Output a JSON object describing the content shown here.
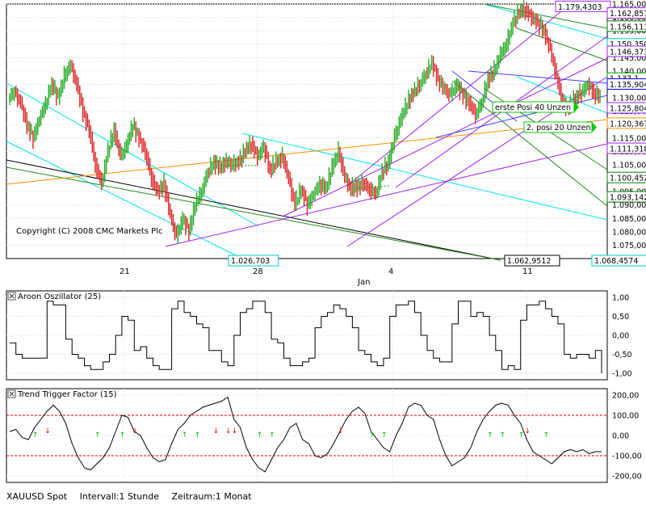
{
  "status_bar": {
    "symbol": "XAUUSD Spot",
    "interval": "Intervall:1 Stunde",
    "period": "Zeitraum:1 Monat"
  },
  "chart_data": [
    {
      "type": "bar",
      "title": "",
      "copyright": "Copyright (C) 2008 CMC Markets Plc",
      "ylim": [
        1.07,
        1.165
      ],
      "y_ticks": [
        "1.165,00",
        "1.160,00",
        "1.155,00",
        "1.150,00",
        "1.145,00",
        "1.140,00",
        "1.135,00",
        "1.130,00",
        "1.125,00",
        "1.120,00",
        "1.115,00",
        "1.110,00",
        "1.105,00",
        "1.100,00",
        "1.095,00",
        "1.090,00",
        "1.085,00",
        "1.080,00",
        "1.075,00"
      ],
      "x_ticks": [
        "21",
        "28",
        "4",
        "11"
      ],
      "x_month_label": "Jan",
      "price_tags": [
        {
          "text": "1.179,4303",
          "color": "#a020f0",
          "y": 1.164
        },
        {
          "text": "1.162,851",
          "color": "#a020f0",
          "y": 1.1615
        },
        {
          "text": "1.156,111",
          "color": "#008000",
          "y": 1.1566
        },
        {
          "text": "1.150,350",
          "color": "#00cccc",
          "y": 1.15
        },
        {
          "text": "1.146,373",
          "color": "#a020f0",
          "y": 1.1472
        },
        {
          "text": "1.137,1",
          "color": "#00a000",
          "y": 1.1372
        },
        {
          "text": "1.135,904",
          "color": "#0000ff",
          "y": 1.135
        },
        {
          "text": "1.125,804",
          "color": "#a020f0",
          "y": 1.1261
        },
        {
          "text": "1.120,367",
          "color": "#ff8c00",
          "y": 1.1204
        },
        {
          "text": "1.111,318",
          "color": "#a020f0",
          "y": 1.111
        },
        {
          "text": "1.100,452",
          "color": "#008000",
          "y": 1.1001
        },
        {
          "text": "1.093,142",
          "color": "#008000",
          "y": 1.0929
        }
      ],
      "bottom_tags": [
        {
          "text": "1.026,703",
          "color": "#00cccc"
        },
        {
          "text": "1.062,9512",
          "color": "#000000"
        },
        {
          "text": "1.068,4574",
          "color": "#00cccc"
        }
      ],
      "annotations": [
        "erste Posi 40 Unzen",
        "2. posi 20 Unzen"
      ],
      "price_path": [
        1.13,
        1.132,
        1.128,
        1.12,
        1.115,
        1.122,
        1.128,
        1.135,
        1.13,
        1.138,
        1.142,
        1.135,
        1.125,
        1.118,
        1.105,
        1.098,
        1.11,
        1.118,
        1.108,
        1.112,
        1.12,
        1.115,
        1.11,
        1.1,
        1.095,
        1.098,
        1.086,
        1.078,
        1.085,
        1.08,
        1.09,
        1.095,
        1.102,
        1.106,
        1.104,
        1.106,
        1.105,
        1.106,
        1.11,
        1.113,
        1.108,
        1.112,
        1.103,
        1.106,
        1.108,
        1.1,
        1.09,
        1.096,
        1.09,
        1.094,
        1.098,
        1.096,
        1.104,
        1.11,
        1.1,
        1.096,
        1.097,
        1.098,
        1.096,
        1.094,
        1.102,
        1.106,
        1.115,
        1.122,
        1.128,
        1.132,
        1.135,
        1.139,
        1.143,
        1.137,
        1.133,
        1.131,
        1.135,
        1.131,
        1.128,
        1.124,
        1.128,
        1.137,
        1.14,
        1.146,
        1.15,
        1.158,
        1.162,
        1.163,
        1.16,
        1.158,
        1.155,
        1.148,
        1.138,
        1.128,
        1.126,
        1.13,
        1.132,
        1.135,
        1.132,
        1.13
      ]
    },
    {
      "type": "line",
      "title": "Aroon Oszillator (25)",
      "ylim": [
        -1,
        1
      ],
      "y_ticks": [
        "1,00",
        "0,50",
        "0,00",
        "-0,50",
        "-1,00"
      ],
      "values": [
        -0.2,
        -0.5,
        -0.6,
        -0.6,
        -0.6,
        -0.6,
        0.9,
        0.8,
        0.8,
        -0.1,
        -0.5,
        -0.6,
        -0.8,
        -0.9,
        -0.9,
        -0.7,
        -0.5,
        0.0,
        0.5,
        0.4,
        -0.4,
        -0.3,
        -0.6,
        -0.8,
        -0.9,
        -0.9,
        0.7,
        0.9,
        0.6,
        0.5,
        0.3,
        0.2,
        -0.4,
        -0.4,
        -0.7,
        -0.8,
        0.0,
        0.6,
        0.7,
        0.9,
        0.9,
        0.6,
        -0.1,
        -0.2,
        -0.6,
        -0.8,
        -0.8,
        -0.7,
        -0.6,
        0.2,
        0.5,
        0.6,
        0.8,
        0.7,
        0.5,
        0.2,
        -0.4,
        -0.5,
        -0.7,
        -0.8,
        -0.6,
        0.5,
        0.8,
        0.8,
        0.9,
        0.6,
        0.0,
        -0.4,
        -0.6,
        -0.7,
        -0.7,
        0.3,
        0.9,
        0.9,
        0.5,
        0.6,
        0.5,
        0.0,
        -0.4,
        -0.9,
        -0.8,
        -0.9,
        0.4,
        0.8,
        0.8,
        0.9,
        0.7,
        0.5,
        0.3,
        -0.5,
        -0.6,
        -0.5,
        -0.5,
        -0.6,
        -0.4,
        -1.0
      ]
    },
    {
      "type": "line",
      "title": "Trend Trigger Factor (15)",
      "ylim": [
        -200,
        200
      ],
      "y_ticks": [
        "200,00",
        "100,00",
        "0,00",
        "-100,00",
        "-200,00"
      ],
      "reference_lines": [
        100,
        -100
      ],
      "values": [
        20,
        30,
        -10,
        -20,
        40,
        80,
        120,
        150,
        120,
        60,
        -40,
        -110,
        -160,
        -170,
        -140,
        -110,
        -60,
        20,
        100,
        90,
        20,
        0,
        -60,
        -110,
        -130,
        -120,
        -40,
        30,
        60,
        100,
        120,
        140,
        150,
        160,
        170,
        190,
        80,
        40,
        -60,
        -120,
        -160,
        -180,
        -120,
        -60,
        -20,
        40,
        60,
        -20,
        -40,
        -100,
        -110,
        -90,
        -40,
        20,
        80,
        120,
        140,
        110,
        20,
        -20,
        -60,
        -80,
        0,
        60,
        140,
        160,
        150,
        100,
        80,
        -20,
        -100,
        -150,
        -130,
        -110,
        -60,
        20,
        80,
        120,
        150,
        160,
        150,
        100,
        60,
        -20,
        -80,
        -100,
        -120,
        -140,
        -110,
        -80,
        -70,
        -80,
        -70,
        -90,
        -80,
        -80
      ],
      "up_arrows": [
        4,
        14,
        18,
        28,
        30,
        40,
        42,
        58,
        60,
        77,
        79,
        82,
        86
      ],
      "down_arrows": [
        6,
        20,
        33,
        35,
        36,
        53,
        83
      ]
    }
  ]
}
